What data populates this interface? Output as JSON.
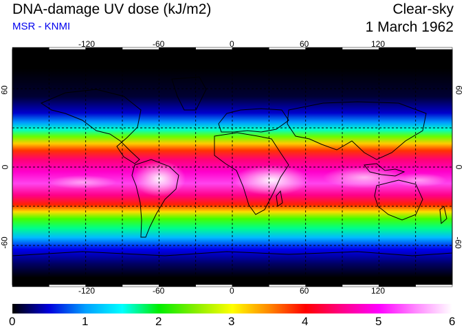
{
  "header": {
    "title": "DNA-damage UV dose (kJ/m2)",
    "subtitle": "MSR - KNMI",
    "condition": "Clear-sky",
    "date": "1 March 1962"
  },
  "map": {
    "lon_ticks": [
      "-120",
      "-60",
      "0",
      "60",
      "120"
    ],
    "lat_ticks": [
      "60",
      "0",
      "-60"
    ],
    "graticule": "dashed",
    "coastlines": true
  },
  "colorbar": {
    "labels": [
      "0",
      "1",
      "2",
      "3",
      "4",
      "5",
      "6"
    ],
    "stops": [
      "#000000",
      "#0000dd",
      "#00a0ff",
      "#00ffff",
      "#00ee00",
      "#88ee00",
      "#ffff00",
      "#ff8800",
      "#ff0000",
      "#ff0088",
      "#ff00ff",
      "#ff88ff",
      "#ffffff"
    ]
  }
}
